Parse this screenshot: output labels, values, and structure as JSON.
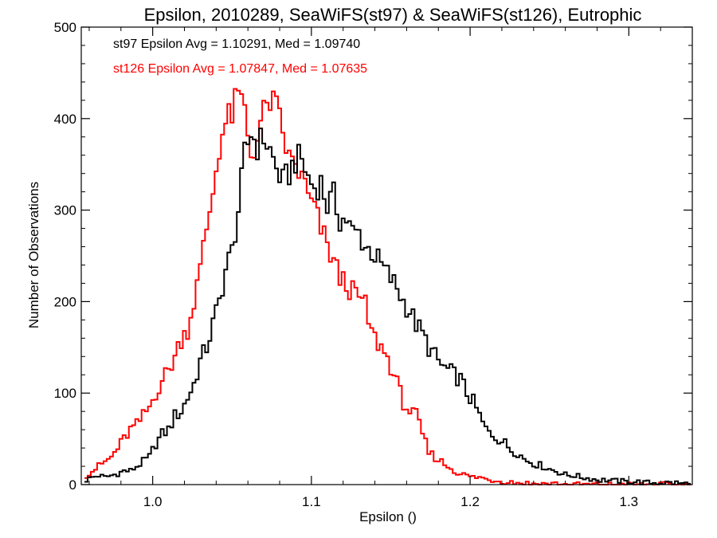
{
  "chart_data": {
    "type": "histogram-step",
    "title": "Epsilon, 2010289, SeaWiFS(st97) & SeaWiFS(st126), Eutrophic",
    "xlabel": "Epsilon ()",
    "ylabel": "Number of Observations",
    "xlim": [
      0.955,
      1.34
    ],
    "ylim": [
      0,
      500
    ],
    "xticks": [
      1.0,
      1.1,
      1.2,
      1.3
    ],
    "xtick_labels": [
      "1.0",
      "1.1",
      "1.2",
      "1.3"
    ],
    "yticks": [
      0,
      100,
      200,
      300,
      400,
      500
    ],
    "ytick_labels": [
      "0",
      "100",
      "200",
      "300",
      "400",
      "500"
    ],
    "annotations": [
      {
        "text": "st97 Epsilon Avg = 1.10291, Med = 1.09740",
        "color": "#000000"
      },
      {
        "text": "st126 Epsilon Avg = 1.07847, Med = 1.07635",
        "color": "#ff0000"
      }
    ],
    "grid": false,
    "bin_width": 0.002,
    "series": [
      {
        "color": "#000000",
        "points": [
          [
            0.957,
            5
          ],
          [
            0.961,
            8
          ],
          [
            0.965,
            10
          ],
          [
            0.969,
            8
          ],
          [
            0.973,
            10
          ],
          [
            0.977,
            12
          ],
          [
            0.981,
            15
          ],
          [
            0.985,
            15
          ],
          [
            0.989,
            20
          ],
          [
            0.993,
            25
          ],
          [
            0.997,
            30
          ],
          [
            1.001,
            45
          ],
          [
            1.005,
            55
          ],
          [
            1.009,
            60
          ],
          [
            1.013,
            75
          ],
          [
            1.017,
            80
          ],
          [
            1.021,
            95
          ],
          [
            1.025,
            110
          ],
          [
            1.029,
            135
          ],
          [
            1.033,
            150
          ],
          [
            1.037,
            175
          ],
          [
            1.041,
            200
          ],
          [
            1.045,
            235
          ],
          [
            1.049,
            255
          ],
          [
            1.053,
            300
          ],
          [
            1.057,
            360
          ],
          [
            1.061,
            385
          ],
          [
            1.065,
            370
          ],
          [
            1.069,
            380
          ],
          [
            1.073,
            365
          ],
          [
            1.077,
            345
          ],
          [
            1.081,
            330
          ],
          [
            1.085,
            340
          ],
          [
            1.089,
            355
          ],
          [
            1.093,
            355
          ],
          [
            1.097,
            335
          ],
          [
            1.101,
            325
          ],
          [
            1.105,
            330
          ],
          [
            1.109,
            305
          ],
          [
            1.113,
            315
          ],
          [
            1.117,
            290
          ],
          [
            1.121,
            290
          ],
          [
            1.125,
            275
          ],
          [
            1.129,
            275
          ],
          [
            1.133,
            260
          ],
          [
            1.137,
            255
          ],
          [
            1.141,
            245
          ],
          [
            1.145,
            235
          ],
          [
            1.149,
            225
          ],
          [
            1.153,
            215
          ],
          [
            1.157,
            200
          ],
          [
            1.161,
            190
          ],
          [
            1.165,
            175
          ],
          [
            1.169,
            165
          ],
          [
            1.173,
            150
          ],
          [
            1.177,
            140
          ],
          [
            1.181,
            130
          ],
          [
            1.185,
            125
          ],
          [
            1.189,
            120
          ],
          [
            1.193,
            115
          ],
          [
            1.197,
            100
          ],
          [
            1.201,
            90
          ],
          [
            1.205,
            75
          ],
          [
            1.209,
            60
          ],
          [
            1.213,
            55
          ],
          [
            1.217,
            50
          ],
          [
            1.221,
            45
          ],
          [
            1.225,
            38
          ],
          [
            1.229,
            35
          ],
          [
            1.233,
            28
          ],
          [
            1.237,
            25
          ],
          [
            1.241,
            22
          ],
          [
            1.245,
            20
          ],
          [
            1.249,
            17
          ],
          [
            1.253,
            15
          ],
          [
            1.257,
            12
          ],
          [
            1.261,
            10
          ],
          [
            1.265,
            10
          ],
          [
            1.269,
            8
          ],
          [
            1.273,
            7
          ],
          [
            1.277,
            6
          ],
          [
            1.281,
            5
          ],
          [
            1.285,
            5
          ],
          [
            1.289,
            4
          ],
          [
            1.293,
            4
          ],
          [
            1.297,
            3
          ],
          [
            1.301,
            3
          ],
          [
            1.305,
            3
          ],
          [
            1.309,
            2
          ],
          [
            1.313,
            2
          ],
          [
            1.317,
            2
          ],
          [
            1.321,
            2
          ],
          [
            1.325,
            2
          ],
          [
            1.329,
            2
          ],
          [
            1.333,
            1
          ],
          [
            1.337,
            1
          ]
        ]
      },
      {
        "color": "#ff0000",
        "points": [
          [
            0.957,
            10
          ],
          [
            0.961,
            15
          ],
          [
            0.965,
            20
          ],
          [
            0.969,
            25
          ],
          [
            0.973,
            30
          ],
          [
            0.977,
            40
          ],
          [
            0.981,
            50
          ],
          [
            0.985,
            60
          ],
          [
            0.989,
            65
          ],
          [
            0.993,
            75
          ],
          [
            0.997,
            85
          ],
          [
            1.001,
            100
          ],
          [
            1.005,
            115
          ],
          [
            1.009,
            125
          ],
          [
            1.013,
            140
          ],
          [
            1.017,
            160
          ],
          [
            1.021,
            170
          ],
          [
            1.025,
            200
          ],
          [
            1.029,
            235
          ],
          [
            1.033,
            280
          ],
          [
            1.037,
            320
          ],
          [
            1.041,
            370
          ],
          [
            1.045,
            395
          ],
          [
            1.049,
            405
          ],
          [
            1.053,
            425
          ],
          [
            1.057,
            410
          ],
          [
            1.061,
            360
          ],
          [
            1.065,
            380
          ],
          [
            1.069,
            405
          ],
          [
            1.073,
            420
          ],
          [
            1.077,
            410
          ],
          [
            1.081,
            385
          ],
          [
            1.085,
            355
          ],
          [
            1.089,
            350
          ],
          [
            1.093,
            335
          ],
          [
            1.097,
            315
          ],
          [
            1.101,
            300
          ],
          [
            1.105,
            280
          ],
          [
            1.109,
            260
          ],
          [
            1.113,
            245
          ],
          [
            1.117,
            225
          ],
          [
            1.121,
            220
          ],
          [
            1.125,
            210
          ],
          [
            1.129,
            205
          ],
          [
            1.133,
            195
          ],
          [
            1.137,
            165
          ],
          [
            1.141,
            155
          ],
          [
            1.145,
            145
          ],
          [
            1.149,
            130
          ],
          [
            1.153,
            110
          ],
          [
            1.157,
            90
          ],
          [
            1.161,
            80
          ],
          [
            1.165,
            75
          ],
          [
            1.169,
            55
          ],
          [
            1.173,
            35
          ],
          [
            1.177,
            30
          ],
          [
            1.181,
            25
          ],
          [
            1.185,
            20
          ],
          [
            1.189,
            15
          ],
          [
            1.193,
            12
          ],
          [
            1.197,
            10
          ],
          [
            1.201,
            8
          ],
          [
            1.205,
            8
          ],
          [
            1.209,
            6
          ],
          [
            1.213,
            5
          ],
          [
            1.217,
            4
          ],
          [
            1.221,
            3
          ],
          [
            1.225,
            3
          ],
          [
            1.229,
            2
          ],
          [
            1.233,
            2
          ],
          [
            1.237,
            1
          ],
          [
            1.241,
            1
          ],
          [
            1.245,
            1
          ],
          [
            1.249,
            1
          ],
          [
            1.253,
            1
          ],
          [
            1.257,
            0
          ],
          [
            1.337,
            0
          ]
        ]
      }
    ]
  }
}
